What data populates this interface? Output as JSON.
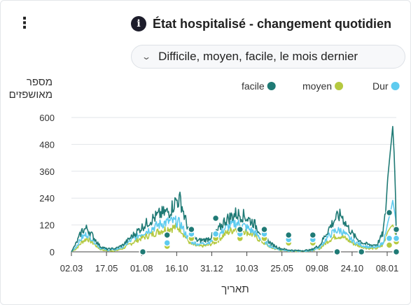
{
  "header": {
    "menu_glyph": "⋮",
    "info_glyph": "i",
    "title": "État hospitalisé - changement quotidien"
  },
  "filter": {
    "selected": "Difficile, moyen, facile, le mois dernier"
  },
  "chart_data": {
    "type": "line",
    "ylabel_lines": [
      "מספר",
      "מאושפזים"
    ],
    "xlabel": "תאריך",
    "ylim": [
      0,
      600
    ],
    "yticks": [
      0,
      120,
      240,
      360,
      480,
      600
    ],
    "xticks": [
      "02.03",
      "17.05",
      "01.08",
      "16.10",
      "31.12",
      "10.03",
      "25.05",
      "09.08",
      "24.10",
      "08.01"
    ],
    "legend_position": "top-right",
    "grid": true,
    "series": [
      {
        "name": "facile",
        "color": "#1f7a75",
        "points": [
          [
            0,
            0
          ],
          [
            7,
            40
          ],
          [
            15,
            95
          ],
          [
            22,
            105
          ],
          [
            30,
            70
          ],
          [
            40,
            25
          ],
          [
            50,
            12
          ],
          [
            62,
            15
          ],
          [
            72,
            30
          ],
          [
            85,
            70
          ],
          [
            97,
            105
          ],
          [
            110,
            140
          ],
          [
            125,
            170
          ],
          [
            137,
            180
          ],
          [
            147,
            230
          ],
          [
            153,
            230
          ],
          [
            159,
            150
          ],
          [
            167,
            70
          ],
          [
            177,
            50
          ],
          [
            190,
            55
          ],
          [
            203,
            85
          ],
          [
            215,
            140
          ],
          [
            230,
            170
          ],
          [
            242,
            160
          ],
          [
            255,
            130
          ],
          [
            267,
            80
          ],
          [
            280,
            35
          ],
          [
            292,
            15
          ],
          [
            305,
            8
          ],
          [
            320,
            5
          ],
          [
            335,
            8
          ],
          [
            348,
            30
          ],
          [
            360,
            100
          ],
          [
            370,
            150
          ],
          [
            378,
            165
          ],
          [
            386,
            115
          ],
          [
            396,
            70
          ],
          [
            408,
            40
          ],
          [
            418,
            30
          ],
          [
            428,
            32
          ],
          [
            436,
            80
          ],
          [
            440,
            170
          ],
          [
            443,
            330
          ],
          [
            447,
            460
          ],
          [
            450,
            560
          ],
          [
            452,
            440
          ],
          [
            454,
            240
          ],
          [
            455,
            60
          ]
        ],
        "markers": [
          0,
          75,
          100,
          150,
          100,
          100,
          75,
          75,
          0,
          0,
          0,
          100,
          0,
          175
        ]
      },
      {
        "name": "moyen",
        "color": "#b5c940",
        "points": [
          [
            0,
            0
          ],
          [
            7,
            15
          ],
          [
            15,
            45
          ],
          [
            22,
            60
          ],
          [
            30,
            40
          ],
          [
            40,
            12
          ],
          [
            50,
            5
          ],
          [
            62,
            5
          ],
          [
            72,
            15
          ],
          [
            85,
            40
          ],
          [
            97,
            60
          ],
          [
            110,
            75
          ],
          [
            125,
            95
          ],
          [
            137,
            105
          ],
          [
            147,
            110
          ],
          [
            153,
            105
          ],
          [
            159,
            70
          ],
          [
            167,
            35
          ],
          [
            177,
            25
          ],
          [
            190,
            28
          ],
          [
            203,
            45
          ],
          [
            215,
            80
          ],
          [
            230,
            105
          ],
          [
            242,
            95
          ],
          [
            255,
            75
          ],
          [
            267,
            45
          ],
          [
            280,
            18
          ],
          [
            292,
            8
          ],
          [
            305,
            4
          ],
          [
            320,
            3
          ],
          [
            335,
            5
          ],
          [
            348,
            15
          ],
          [
            360,
            50
          ],
          [
            370,
            70
          ],
          [
            378,
            70
          ],
          [
            386,
            55
          ],
          [
            396,
            35
          ],
          [
            408,
            20
          ],
          [
            418,
            15
          ],
          [
            428,
            15
          ],
          [
            436,
            30
          ],
          [
            440,
            60
          ],
          [
            443,
            90
          ],
          [
            447,
            110
          ],
          [
            450,
            120
          ],
          [
            452,
            100
          ],
          [
            454,
            75
          ],
          [
            455,
            55
          ]
        ],
        "markers": [
          0,
          25,
          60,
          60,
          60,
          60,
          40,
          40,
          0,
          0,
          0,
          45,
          0,
          30
        ]
      },
      {
        "name": "Dur",
        "color": "#5ecbef",
        "points": [
          [
            0,
            0
          ],
          [
            7,
            25
          ],
          [
            15,
            65
          ],
          [
            22,
            80
          ],
          [
            30,
            55
          ],
          [
            40,
            18
          ],
          [
            50,
            8
          ],
          [
            62,
            10
          ],
          [
            72,
            22
          ],
          [
            85,
            55
          ],
          [
            97,
            80
          ],
          [
            110,
            100
          ],
          [
            125,
            125
          ],
          [
            137,
            135
          ],
          [
            147,
            135
          ],
          [
            153,
            125
          ],
          [
            159,
            85
          ],
          [
            167,
            45
          ],
          [
            177,
            35
          ],
          [
            190,
            40
          ],
          [
            203,
            60
          ],
          [
            215,
            105
          ],
          [
            230,
            130
          ],
          [
            242,
            115
          ],
          [
            255,
            90
          ],
          [
            267,
            55
          ],
          [
            280,
            22
          ],
          [
            292,
            10
          ],
          [
            305,
            5
          ],
          [
            320,
            3
          ],
          [
            335,
            5
          ],
          [
            348,
            20
          ],
          [
            360,
            70
          ],
          [
            370,
            95
          ],
          [
            378,
            95
          ],
          [
            386,
            70
          ],
          [
            396,
            45
          ],
          [
            408,
            28
          ],
          [
            418,
            20
          ],
          [
            428,
            20
          ],
          [
            436,
            40
          ],
          [
            440,
            80
          ],
          [
            443,
            130
          ],
          [
            447,
            180
          ],
          [
            450,
            230
          ],
          [
            452,
            190
          ],
          [
            454,
            150
          ],
          [
            455,
            110
          ]
        ],
        "markers": [
          0,
          40,
          80,
          80,
          80,
          80,
          55,
          55,
          0,
          0,
          0,
          60,
          0,
          60
        ]
      }
    ]
  }
}
